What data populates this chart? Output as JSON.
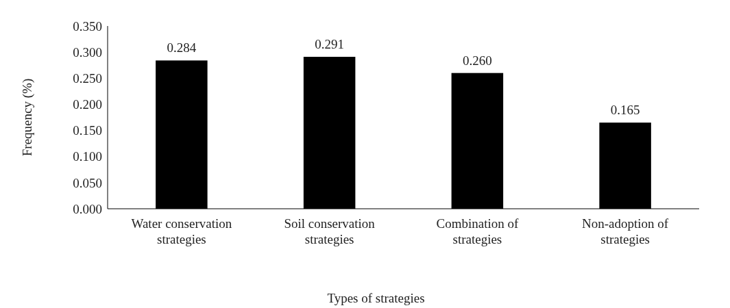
{
  "chart_data": {
    "type": "bar",
    "xlabel": "Types of strategies",
    "ylabel": "Frequency (%)",
    "categories": [
      "Water conservation strategies",
      "Soil conservation strategies",
      "Combination of strategies",
      "Non-adoption of strategies"
    ],
    "values": [
      0.284,
      0.291,
      0.26,
      0.165
    ],
    "color": "#000000",
    "ylim": [
      0,
      0.35
    ],
    "yticks": [
      {
        "value": 0,
        "label": "0.000"
      },
      {
        "value": 0.05,
        "label": "0.050"
      },
      {
        "value": 0.1,
        "label": "0.100"
      },
      {
        "value": 0.15,
        "label": "0.150"
      },
      {
        "value": 0.2,
        "label": "0.200"
      },
      {
        "value": 0.25,
        "label": "0.250"
      },
      {
        "value": 0.3,
        "label": "0.300"
      },
      {
        "value": 0.35,
        "label": "0.350"
      }
    ],
    "value_labels": [
      "0.284",
      "0.291",
      "0.260",
      "0.165"
    ]
  }
}
